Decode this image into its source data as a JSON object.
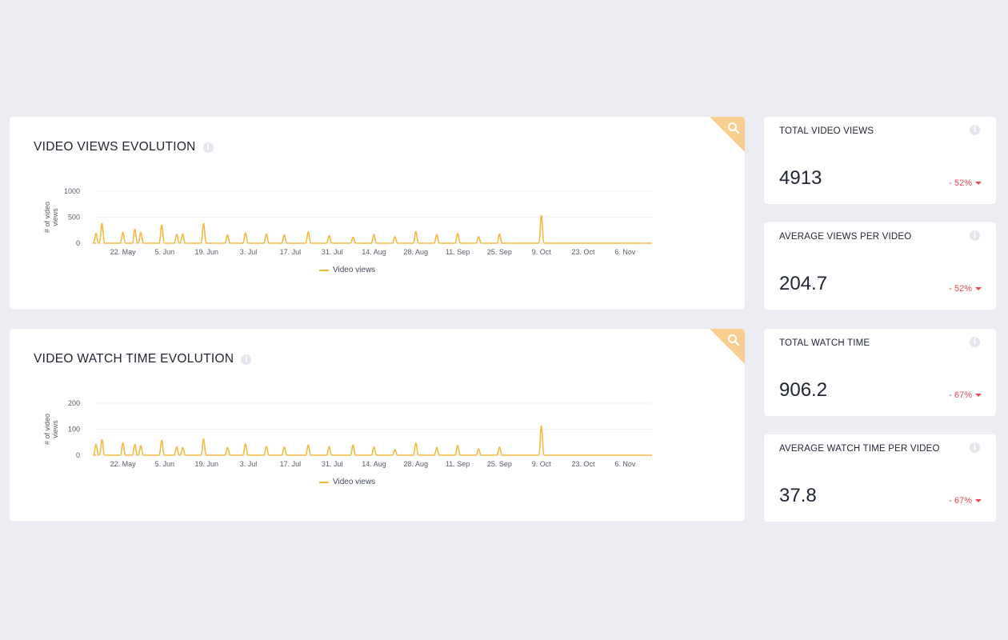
{
  "colors": {
    "accent": "#f5b942",
    "negative": "#e5494f",
    "corner": "#f8cf8f"
  },
  "charts": [
    {
      "title": "VIDEO VIEWS EVOLUTION",
      "legend": "Video views",
      "zoom_icon": "search-icon",
      "info_icon": "info-icon"
    },
    {
      "title": "VIDEO WATCH TIME EVOLUTION",
      "legend": "Video views",
      "zoom_icon": "search-icon",
      "info_icon": "info-icon"
    }
  ],
  "chart_data": [
    {
      "type": "line",
      "title": "VIDEO VIEWS EVOLUTION",
      "xlabel": "",
      "ylabel": "# of video views",
      "ylim": [
        0,
        1000
      ],
      "yticks": [
        0,
        500,
        1000
      ],
      "xlim": [
        "2020-05-13",
        "2020-11-15"
      ],
      "xticks": [
        "22. May",
        "5. Jun",
        "19. Jun",
        "3. Jul",
        "17. Jul",
        "31. Jul",
        "14. Aug",
        "28. Aug",
        "11. Sep",
        "25. Sep",
        "9. Oct",
        "23. Oct",
        "6. Nov"
      ],
      "grid": true,
      "legend_position": "bottom",
      "series": [
        {
          "name": "Video views",
          "color": "#f5b942",
          "x": [
            "2020-05-13",
            "2020-05-15",
            "2020-05-22",
            "2020-05-26",
            "2020-05-28",
            "2020-06-04",
            "2020-06-09",
            "2020-06-11",
            "2020-06-18",
            "2020-06-26",
            "2020-07-02",
            "2020-07-09",
            "2020-07-15",
            "2020-07-23",
            "2020-07-30",
            "2020-08-07",
            "2020-08-14",
            "2020-08-21",
            "2020-08-28",
            "2020-09-04",
            "2020-09-11",
            "2020-09-18",
            "2020-09-25",
            "2020-10-09"
          ],
          "y": [
            180,
            370,
            200,
            260,
            200,
            340,
            160,
            170,
            370,
            150,
            190,
            170,
            150,
            210,
            140,
            110,
            160,
            120,
            220,
            160,
            180,
            120,
            170,
            520
          ]
        }
      ]
    },
    {
      "type": "line",
      "title": "VIDEO WATCH TIME EVOLUTION",
      "xlabel": "",
      "ylabel": "# of video views",
      "ylim": [
        0,
        200
      ],
      "yticks": [
        0,
        100,
        200
      ],
      "xlim": [
        "2020-05-13",
        "2020-11-15"
      ],
      "xticks": [
        "22. May",
        "5. Jun",
        "19. Jun",
        "3. Jul",
        "17. Jul",
        "31. Jul",
        "14. Aug",
        "28. Aug",
        "11. Sep",
        "25. Sep",
        "9. Oct",
        "23. Oct",
        "6. Nov"
      ],
      "grid": true,
      "legend_position": "bottom",
      "series": [
        {
          "name": "Video views",
          "color": "#f5b942",
          "x": [
            "2020-05-13",
            "2020-05-15",
            "2020-05-22",
            "2020-05-26",
            "2020-05-28",
            "2020-06-04",
            "2020-06-09",
            "2020-06-11",
            "2020-06-18",
            "2020-06-26",
            "2020-07-02",
            "2020-07-09",
            "2020-07-15",
            "2020-07-23",
            "2020-07-30",
            "2020-08-07",
            "2020-08-14",
            "2020-08-21",
            "2020-08-28",
            "2020-09-04",
            "2020-09-11",
            "2020-09-18",
            "2020-09-25",
            "2020-10-09"
          ],
          "y": [
            40,
            58,
            45,
            40,
            35,
            55,
            30,
            28,
            60,
            28,
            42,
            32,
            30,
            38,
            32,
            38,
            30,
            20,
            45,
            28,
            36,
            22,
            30,
            110
          ]
        }
      ]
    }
  ],
  "stats": [
    {
      "title": "TOTAL VIDEO VIEWS",
      "value": "4913",
      "change": "- 52%"
    },
    {
      "title": "AVERAGE VIEWS PER VIDEO",
      "value": "204.7",
      "change": "- 52%"
    },
    {
      "title": "TOTAL WATCH TIME",
      "value": "906.2",
      "change": "- 67%"
    },
    {
      "title": "AVERAGE WATCH TIME PER VIDEO",
      "value": "37.8",
      "change": "- 67%"
    }
  ]
}
